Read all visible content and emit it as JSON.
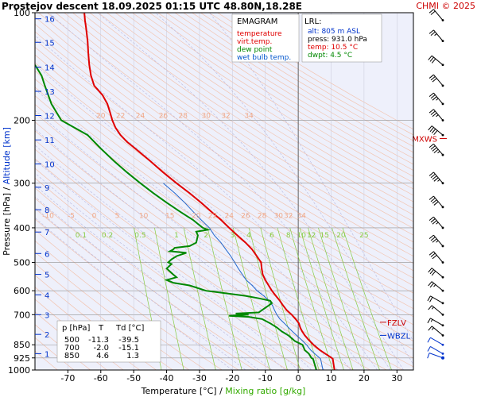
{
  "chart_data": {
    "type": "line",
    "title": "Prostejov   descent   18.09.2025 01:15 UTC  48.80N,18.28E",
    "credit": "CHMI © 2025",
    "legend_title": "EMAGRAM",
    "legend": [
      "temperature",
      "virt.temp.",
      "dew point",
      "wet bulb temp."
    ],
    "lrl": {
      "title": "LRL:",
      "alt": "alt: 805 m ASL",
      "press": "press: 931.0 hPa",
      "temp": "temp: 10.5 °C",
      "dwpt": "dwpt: 4.5 °C"
    },
    "table": {
      "headers": [
        "p [hPa]",
        "T",
        "Td [°C]"
      ],
      "rows": [
        [
          "500",
          "-11.3",
          "-39.5"
        ],
        [
          "700",
          "-2.0",
          "-15.1"
        ],
        [
          "850",
          "4.6",
          "1.3"
        ]
      ]
    },
    "ylabel_pressure": "Pressure [hPa]",
    "ylabel_sep": "  /  ",
    "ylabel_altitude": "Altitude [km]",
    "xlabel_temperature": "Temperature [°C]",
    "xlabel_sep": "  /  ",
    "xlabel_mixing": "Mixing ratio [g/kg]",
    "x_range": [
      -80,
      35
    ],
    "y_range_hpa": [
      1000,
      100
    ],
    "y_scale": "log",
    "x_ticks": [
      -70,
      -60,
      -50,
      -40,
      -30,
      -20,
      -10,
      0,
      10,
      20,
      30
    ],
    "pressure_ticks": [
      100,
      200,
      300,
      400,
      500,
      600,
      700,
      850,
      925,
      1000
    ],
    "altitude_ticks": [
      {
        "label": "1",
        "p": 900
      },
      {
        "label": "2",
        "p": 795
      },
      {
        "label": "3",
        "p": 700
      },
      {
        "label": "4",
        "p": 616
      },
      {
        "label": "5",
        "p": 540
      },
      {
        "label": "6",
        "p": 472
      },
      {
        "label": "7",
        "p": 411
      },
      {
        "label": "8",
        "p": 356
      },
      {
        "label": "9",
        "p": 308
      },
      {
        "label": "10",
        "p": 265
      },
      {
        "label": "11",
        "p": 227
      },
      {
        "label": "12",
        "p": 194
      },
      {
        "label": "13",
        "p": 166
      },
      {
        "label": "14",
        "p": 142
      },
      {
        "label": "15",
        "p": 121
      },
      {
        "label": "16",
        "p": 104
      }
    ],
    "colors": {
      "temperature": "#e00000",
      "dewpoint": "#008800",
      "wetbulb": "#2266cc",
      "dry_adiabat": "#f2c4b0",
      "moist_adiabat": "#b8b8e0",
      "mixing_ratio": "#88cc44",
      "grid": "#909090",
      "wind": "#000000",
      "wind_lower": "#0033cc",
      "annot": "#cc0000"
    },
    "mixing_ratio_values": [
      "0.1",
      "0.2",
      "0.5",
      "1",
      "2",
      "3",
      "4",
      "6",
      "8",
      "10",
      "12",
      "15",
      "20",
      "25"
    ],
    "mixing_label_pressure": 400,
    "mixing_label_temps": [
      -66,
      -58,
      -48,
      -37,
      -28,
      -20,
      -15,
      -8,
      -3,
      1,
      4,
      8,
      13,
      20
    ],
    "thetae_labels_upper": {
      "p": 200,
      "values": [
        "20",
        "22",
        "24",
        "26",
        "28",
        "30",
        "32",
        "34"
      ],
      "temps": [
        -60,
        -54,
        -48,
        -41,
        -35,
        -28,
        -22,
        -15
      ]
    },
    "thetae_labels_lower": {
      "p": 370,
      "values": [
        "-10",
        "-5",
        "0",
        "5",
        "10",
        "15",
        "20",
        "22",
        "24",
        "26",
        "28",
        "30",
        "32",
        "34"
      ],
      "temps": [
        -76,
        -69,
        -62,
        -55,
        -47,
        -39,
        -31,
        -26,
        -21,
        -16,
        -11,
        -6,
        -3,
        1
      ]
    },
    "temperature": [
      [
        1000,
        11.0
      ],
      [
        931,
        10.5
      ],
      [
        925,
        10.2
      ],
      [
        900,
        8.2
      ],
      [
        880,
        6.6
      ],
      [
        850,
        4.6
      ],
      [
        820,
        3.0
      ],
      [
        800,
        2.0
      ],
      [
        780,
        1.2
      ],
      [
        760,
        0.6
      ],
      [
        740,
        0.2
      ],
      [
        720,
        -0.8
      ],
      [
        700,
        -2.0
      ],
      [
        680,
        -3.5
      ],
      [
        660,
        -4.6
      ],
      [
        640,
        -5.6
      ],
      [
        620,
        -6.8
      ],
      [
        600,
        -8.0
      ],
      [
        580,
        -9.0
      ],
      [
        560,
        -10.0
      ],
      [
        540,
        -10.8
      ],
      [
        520,
        -11.1
      ],
      [
        500,
        -11.3
      ],
      [
        480,
        -12.6
      ],
      [
        460,
        -14.0
      ],
      [
        440,
        -16.0
      ],
      [
        420,
        -18.5
      ],
      [
        400,
        -21.0
      ],
      [
        380,
        -23.5
      ],
      [
        360,
        -26.5
      ],
      [
        340,
        -29.5
      ],
      [
        320,
        -33.0
      ],
      [
        300,
        -37.0
      ],
      [
        280,
        -41.0
      ],
      [
        260,
        -45.0
      ],
      [
        240,
        -49.5
      ],
      [
        230,
        -52.0
      ],
      [
        220,
        -54.0
      ],
      [
        210,
        -55.5
      ],
      [
        200,
        -56.5
      ],
      [
        190,
        -57.2
      ],
      [
        180,
        -58.0
      ],
      [
        170,
        -59.5
      ],
      [
        160,
        -62.0
      ],
      [
        150,
        -63.0
      ],
      [
        140,
        -63.5
      ],
      [
        130,
        -63.8
      ],
      [
        120,
        -64.0
      ],
      [
        110,
        -64.5
      ],
      [
        105,
        -64.8
      ],
      [
        100,
        -65.0
      ]
    ],
    "dewpoint": [
      [
        1000,
        5.5
      ],
      [
        931,
        4.5
      ],
      [
        925,
        4.0
      ],
      [
        900,
        3.2
      ],
      [
        880,
        2.0
      ],
      [
        850,
        1.3
      ],
      [
        830,
        -1.0
      ],
      [
        800,
        -3.0
      ],
      [
        780,
        -5.0
      ],
      [
        760,
        -6.5
      ],
      [
        740,
        -8.5
      ],
      [
        720,
        -11.0
      ],
      [
        710,
        -15.0
      ],
      [
        705,
        -21.0
      ],
      [
        700,
        -15.1
      ],
      [
        695,
        -19.0
      ],
      [
        690,
        -12.0
      ],
      [
        680,
        -11.0
      ],
      [
        670,
        -10.0
      ],
      [
        660,
        -9.0
      ],
      [
        650,
        -8.0
      ],
      [
        640,
        -8.5
      ],
      [
        630,
        -12.0
      ],
      [
        620,
        -16.0
      ],
      [
        610,
        -22.0
      ],
      [
        600,
        -28.0
      ],
      [
        580,
        -33.0
      ],
      [
        570,
        -38.0
      ],
      [
        560,
        -40.0
      ],
      [
        550,
        -37.0
      ],
      [
        540,
        -38.0
      ],
      [
        530,
        -39.0
      ],
      [
        520,
        -40.0
      ],
      [
        510,
        -39.0
      ],
      [
        505,
        -38.5
      ],
      [
        500,
        -39.5
      ],
      [
        490,
        -38.5
      ],
      [
        480,
        -37.0
      ],
      [
        470,
        -34.0
      ],
      [
        465,
        -39.0
      ],
      [
        460,
        -38.0
      ],
      [
        455,
        -37.5
      ],
      [
        450,
        -33.0
      ],
      [
        440,
        -31.0
      ],
      [
        420,
        -30.5
      ],
      [
        410,
        -31.0
      ],
      [
        405,
        -27.5
      ],
      [
        400,
        -29.0
      ],
      [
        390,
        -30.5
      ],
      [
        380,
        -32.0
      ],
      [
        370,
        -34.0
      ],
      [
        360,
        -36.0
      ],
      [
        340,
        -40.0
      ],
      [
        320,
        -44.0
      ],
      [
        300,
        -48.0
      ],
      [
        280,
        -52.0
      ],
      [
        260,
        -56.0
      ],
      [
        240,
        -60.0
      ],
      [
        220,
        -64.0
      ],
      [
        200,
        -72.0
      ],
      [
        180,
        -75.0
      ],
      [
        160,
        -77.0
      ],
      [
        150,
        -78.0
      ],
      [
        140,
        -80.0
      ]
    ],
    "wetbulb": [
      [
        1000,
        7.5
      ],
      [
        931,
        6.8
      ],
      [
        925,
        6.5
      ],
      [
        900,
        5.0
      ],
      [
        880,
        3.8
      ],
      [
        850,
        2.5
      ],
      [
        820,
        0.8
      ],
      [
        800,
        -0.5
      ],
      [
        780,
        -1.8
      ],
      [
        760,
        -3.0
      ],
      [
        740,
        -4.2
      ],
      [
        720,
        -5.6
      ],
      [
        700,
        -6.5
      ],
      [
        680,
        -7.2
      ],
      [
        660,
        -7.8
      ],
      [
        640,
        -8.8
      ],
      [
        620,
        -10.5
      ],
      [
        600,
        -12.5
      ],
      [
        580,
        -14.0
      ],
      [
        560,
        -15.8
      ],
      [
        540,
        -17.0
      ],
      [
        520,
        -18.2
      ],
      [
        500,
        -19.3
      ],
      [
        480,
        -20.5
      ],
      [
        460,
        -22.0
      ],
      [
        440,
        -23.5
      ],
      [
        420,
        -25.5
      ],
      [
        400,
        -27.0
      ],
      [
        380,
        -29.5
      ],
      [
        360,
        -32.0
      ],
      [
        340,
        -34.5
      ],
      [
        320,
        -37.5
      ],
      [
        300,
        -41.0
      ]
    ],
    "wind_levels": [
      {
        "p": 925,
        "spd": 10,
        "dir": 290
      },
      {
        "p": 900,
        "spd": 10,
        "dir": 300
      },
      {
        "p": 850,
        "spd": 10,
        "dir": 300
      },
      {
        "p": 800,
        "spd": 15,
        "dir": 310
      },
      {
        "p": 750,
        "spd": 15,
        "dir": 300
      },
      {
        "p": 700,
        "spd": 15,
        "dir": 310
      },
      {
        "p": 650,
        "spd": 20,
        "dir": 300
      },
      {
        "p": 600,
        "spd": 25,
        "dir": 310
      },
      {
        "p": 550,
        "spd": 30,
        "dir": 310
      },
      {
        "p": 500,
        "spd": 30,
        "dir": 320
      },
      {
        "p": 450,
        "spd": 35,
        "dir": 320
      },
      {
        "p": 400,
        "spd": 35,
        "dir": 320
      },
      {
        "p": 350,
        "spd": 40,
        "dir": 320
      },
      {
        "p": 300,
        "spd": 45,
        "dir": 320
      },
      {
        "p": 250,
        "spd": 45,
        "dir": 320
      },
      {
        "p": 220,
        "spd": 40,
        "dir": 310
      },
      {
        "p": 200,
        "spd": 35,
        "dir": 320
      },
      {
        "p": 180,
        "spd": 35,
        "dir": 320
      },
      {
        "p": 160,
        "spd": 30,
        "dir": 320
      },
      {
        "p": 140,
        "spd": 30,
        "dir": 310
      },
      {
        "p": 120,
        "spd": 25,
        "dir": 320
      },
      {
        "p": 105,
        "spd": 20,
        "dir": 320
      }
    ],
    "annotations": [
      {
        "label": "MXWS",
        "p": 225
      },
      {
        "label": "FZLV",
        "p": 735
      },
      {
        "label": "WBZL",
        "p": 800
      }
    ]
  }
}
